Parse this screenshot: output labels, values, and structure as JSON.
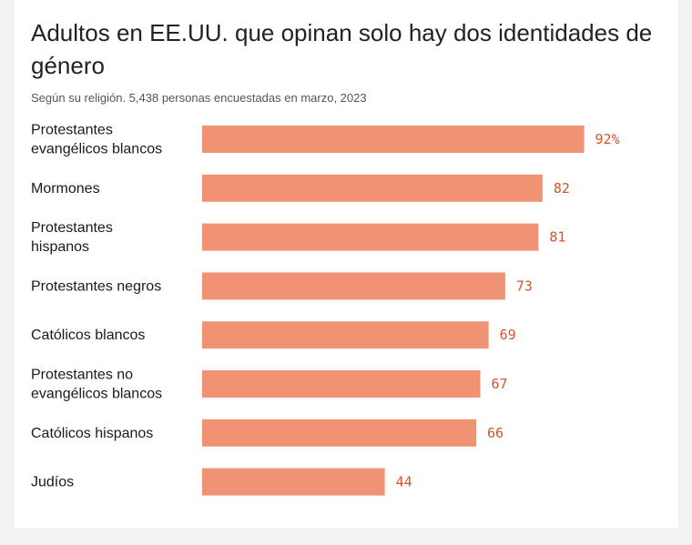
{
  "title": "Adultos en EE.UU. que opinan solo hay dos identidades de género",
  "subtitle": "Según su religión. 5,438 personas encuestadas en marzo, 2023",
  "colors": {
    "bar": "#f09375",
    "value_text": "#d1542e",
    "background": "#f2f2f2",
    "card": "#ffffff"
  },
  "chart_data": {
    "type": "bar",
    "orientation": "horizontal",
    "title": "Adultos en EE.UU. que opinan solo hay dos identidades de género",
    "subtitle": "Según su religión. 5,438 personas encuestadas en marzo, 2023",
    "categories": [
      [
        "Protestantes",
        "evangélicos blancos"
      ],
      [
        "Mormones"
      ],
      [
        "Protestantes",
        "hispanos"
      ],
      [
        "Protestantes negros"
      ],
      [
        "Católicos blancos"
      ],
      [
        "Protestantes no",
        "evangélicos blancos"
      ],
      [
        "Católicos hispanos"
      ],
      [
        "Judíos"
      ]
    ],
    "values": [
      92,
      82,
      81,
      73,
      69,
      67,
      66,
      44
    ],
    "value_labels": [
      "92%",
      "82",
      "81",
      "73",
      "69",
      "67",
      "66",
      "44"
    ],
    "xlim": [
      0,
      100
    ],
    "grid": false,
    "legend": "none"
  }
}
